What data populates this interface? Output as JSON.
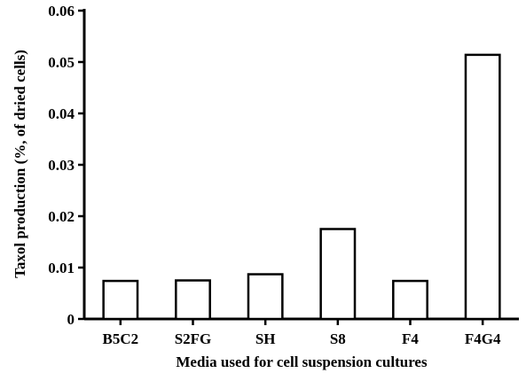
{
  "chart_data": {
    "type": "bar",
    "title": "",
    "xlabel": "Media used for cell suspension cultures",
    "ylabel": "Taxol production (%, of dried cells)",
    "categories": [
      "B5C2",
      "S2FG",
      "SH",
      "S8",
      "F4",
      "F4G4"
    ],
    "values": [
      0.0074,
      0.0075,
      0.0087,
      0.0175,
      0.0074,
      0.0514
    ],
    "ylim": [
      0,
      0.06
    ],
    "yticks": [
      0,
      0.01,
      0.02,
      0.03,
      0.04,
      0.05,
      0.06
    ],
    "ytick_labels": [
      "0",
      "0.01",
      "0.02",
      "0.03",
      "0.04",
      "0.05",
      "0.06"
    ],
    "grid": false,
    "bar_fill": "#ffffff",
    "bar_stroke": "#000000"
  }
}
